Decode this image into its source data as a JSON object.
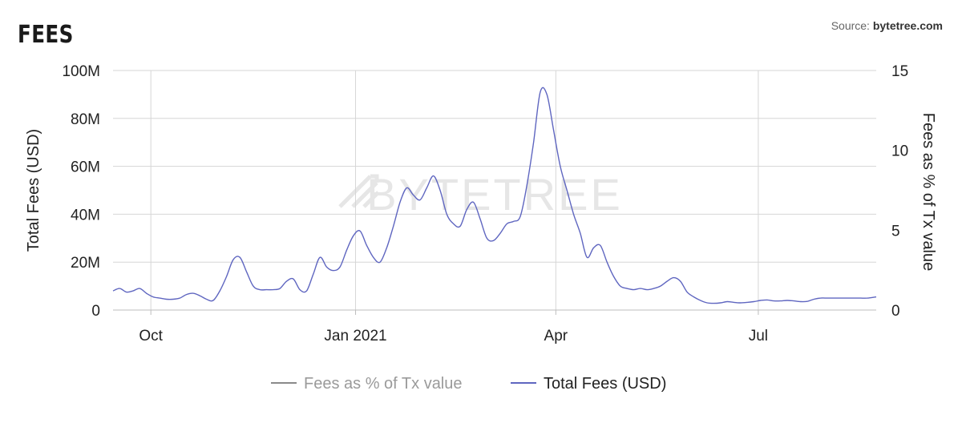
{
  "header": {
    "title": "FEES",
    "source_prefix": "Source: ",
    "source_name": "bytetree.com"
  },
  "watermark": "BYTETREE",
  "colors": {
    "fees_pct": "#8a8a8a",
    "total_fees": "#5f66c0",
    "grid": "#d6d6d6"
  },
  "chart_data": {
    "type": "line",
    "title": "FEES",
    "x_ticks": [
      "Oct",
      "Jan 2021",
      "Apr",
      "Jul"
    ],
    "x_tick_dates": [
      "2020-10-01",
      "2021-01-01",
      "2021-04-01",
      "2021-07-01"
    ],
    "xlim": [
      "2020-09-14",
      "2021-08-23"
    ],
    "y_left": {
      "label": "Total Fees (USD)",
      "lim": [
        0,
        100000000
      ],
      "ticks": [
        "0",
        "20M",
        "40M",
        "60M",
        "80M",
        "100M"
      ],
      "tick_values": [
        0,
        20000000,
        40000000,
        60000000,
        80000000,
        100000000
      ]
    },
    "y_right": {
      "label": "Fees as % of Tx value",
      "lim": [
        0,
        15
      ],
      "ticks": [
        "0",
        "5",
        "10",
        "15"
      ],
      "tick_values": [
        0,
        5,
        10,
        15
      ]
    },
    "grid": true,
    "legend_placement": "bottom-center",
    "series": [
      {
        "name": "Fees as % of Tx value",
        "axis": "right",
        "visible": false,
        "x": [],
        "y": []
      },
      {
        "name": "Total Fees (USD)",
        "axis": "left",
        "x": [
          "2020-09-14",
          "2020-09-17",
          "2020-09-20",
          "2020-09-23",
          "2020-09-26",
          "2020-09-29",
          "2020-10-02",
          "2020-10-05",
          "2020-10-08",
          "2020-10-11",
          "2020-10-14",
          "2020-10-17",
          "2020-10-20",
          "2020-10-23",
          "2020-10-26",
          "2020-10-29",
          "2020-11-01",
          "2020-11-04",
          "2020-11-07",
          "2020-11-10",
          "2020-11-13",
          "2020-11-16",
          "2020-11-19",
          "2020-11-22",
          "2020-11-25",
          "2020-11-28",
          "2020-12-01",
          "2020-12-04",
          "2020-12-07",
          "2020-12-10",
          "2020-12-13",
          "2020-12-16",
          "2020-12-19",
          "2020-12-22",
          "2020-12-25",
          "2020-12-28",
          "2020-12-31",
          "2021-01-03",
          "2021-01-06",
          "2021-01-09",
          "2021-01-12",
          "2021-01-15",
          "2021-01-18",
          "2021-01-21",
          "2021-01-24",
          "2021-01-27",
          "2021-01-30",
          "2021-02-02",
          "2021-02-05",
          "2021-02-08",
          "2021-02-11",
          "2021-02-14",
          "2021-02-17",
          "2021-02-20",
          "2021-02-23",
          "2021-02-26",
          "2021-03-01",
          "2021-03-04",
          "2021-03-07",
          "2021-03-10",
          "2021-03-13",
          "2021-03-16",
          "2021-03-19",
          "2021-03-22",
          "2021-03-25",
          "2021-03-28",
          "2021-03-31",
          "2021-04-03",
          "2021-04-06",
          "2021-04-09",
          "2021-04-12",
          "2021-04-15",
          "2021-04-18",
          "2021-04-21",
          "2021-04-24",
          "2021-04-27",
          "2021-04-30",
          "2021-05-03",
          "2021-05-06",
          "2021-05-09",
          "2021-05-12",
          "2021-05-15",
          "2021-05-18",
          "2021-05-21",
          "2021-05-24",
          "2021-05-27",
          "2021-05-30",
          "2021-06-02",
          "2021-06-05",
          "2021-06-08",
          "2021-06-11",
          "2021-06-14",
          "2021-06-17",
          "2021-06-20",
          "2021-06-23",
          "2021-06-26",
          "2021-06-29",
          "2021-07-02",
          "2021-07-05",
          "2021-07-08",
          "2021-07-11",
          "2021-07-14",
          "2021-07-17",
          "2021-07-20",
          "2021-07-23",
          "2021-07-26",
          "2021-07-29",
          "2021-08-01",
          "2021-08-04",
          "2021-08-07",
          "2021-08-10",
          "2021-08-13",
          "2021-08-16",
          "2021-08-19",
          "2021-08-23"
        ],
        "y": [
          8000000,
          9000000,
          7500000,
          8000000,
          9000000,
          7000000,
          5500000,
          5000000,
          4500000,
          4500000,
          5000000,
          6500000,
          7000000,
          6000000,
          4500000,
          4000000,
          8000000,
          14000000,
          21000000,
          22000000,
          16000000,
          10000000,
          8500000,
          8500000,
          8500000,
          9000000,
          12000000,
          13000000,
          8500000,
          8000000,
          15000000,
          22000000,
          18000000,
          16500000,
          18000000,
          25000000,
          31000000,
          33000000,
          27000000,
          22000000,
          20000000,
          26000000,
          35000000,
          45000000,
          51000000,
          48000000,
          46000000,
          51000000,
          56000000,
          50000000,
          40000000,
          36000000,
          35000000,
          42000000,
          45000000,
          38000000,
          30000000,
          29000000,
          32000000,
          36000000,
          37000000,
          39000000,
          52000000,
          70000000,
          91000000,
          90000000,
          75000000,
          60000000,
          50000000,
          40000000,
          32000000,
          22000000,
          26000000,
          27000000,
          20000000,
          14000000,
          10000000,
          9000000,
          8500000,
          9000000,
          8500000,
          9000000,
          10000000,
          12000000,
          13500000,
          12000000,
          7500000,
          5500000,
          4000000,
          3000000,
          2800000,
          3000000,
          3500000,
          3200000,
          3000000,
          3200000,
          3500000,
          4000000,
          4200000,
          3800000,
          3800000,
          4000000,
          3800000,
          3500000,
          3600000,
          4500000,
          5000000,
          5000000,
          5000000,
          5000000,
          5000000,
          5000000,
          5000000,
          5000000,
          5500000
        ]
      }
    ]
  },
  "legend": {
    "items": [
      {
        "label": "Fees as % of Tx value",
        "color": "#8a8a8a",
        "hidden": true
      },
      {
        "label": "Total Fees (USD)",
        "color": "#5f66c0",
        "hidden": false
      }
    ]
  }
}
